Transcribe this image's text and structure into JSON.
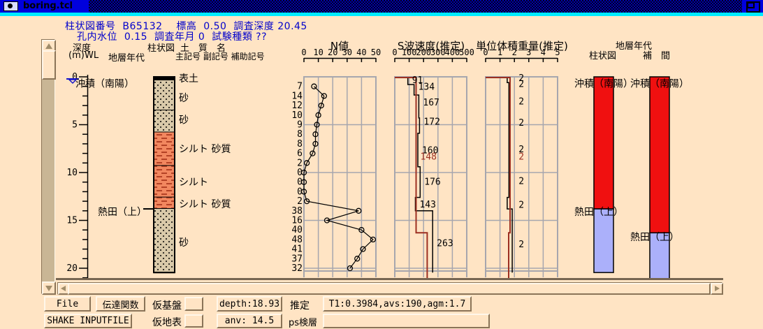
{
  "window": {
    "title": "boring.tcl",
    "menu_icon": "window-menu-circle-icon",
    "maximize_icon": "maximize-icon"
  },
  "header": {
    "line1": "柱状図番号  B65132    標高  0.50  調査深度 20.45",
    "line2": "孔内水位  0.15  調査年月 0  試験種類 ??"
  },
  "column_headers": {
    "depth": "深度",
    "depth_unit": "(m)",
    "wl": "WL",
    "era": "地層年代",
    "column": "柱状図",
    "soil_name": "土　質　名",
    "soil_codes": "主記号 副記号 補助記号",
    "right_era": "地層年代",
    "right_column": "柱状図",
    "right_interp": "補　間"
  },
  "depth_axis": {
    "unit": "m",
    "major_ticks": [
      0,
      5,
      10,
      15,
      20
    ],
    "minor_step": 1,
    "max_shown": 21
  },
  "log": {
    "water_level_depth": 0.15,
    "era_labels": [
      {
        "text": "沖積（南陽）",
        "depth": 0.7,
        "tick": false
      },
      {
        "text": "熱田（上）",
        "depth": 14.1,
        "tick": true
      }
    ],
    "layers": [
      {
        "from": 0,
        "to": 0.36,
        "pattern": "topsoil",
        "name": "表土",
        "label_depth": 0.15
      },
      {
        "from": 0.36,
        "to": 3.5,
        "pattern": "sand",
        "name": "砂",
        "label_depth": 2.2
      },
      {
        "from": 3.5,
        "to": 5.8,
        "pattern": "sand",
        "name": "砂",
        "label_depth": 4.5
      },
      {
        "from": 5.8,
        "to": 9.3,
        "pattern": "silt",
        "name": "シルト 砂質",
        "label_depth": 7.5
      },
      {
        "from": 9.3,
        "to": 12.6,
        "pattern": "silt",
        "name": "シルト",
        "label_depth": 11.0
      },
      {
        "from": 12.6,
        "to": 13.8,
        "pattern": "silt",
        "name": "シルト 砂質",
        "label_depth": 13.3
      },
      {
        "from": 13.8,
        "to": 20.45,
        "pattern": "sand",
        "name": "砂",
        "label_depth": 17.3
      }
    ]
  },
  "chart_data": [
    {
      "type": "line",
      "title": "N値",
      "x_ticks": [
        0,
        10,
        20,
        30,
        40,
        50
      ],
      "x_range": [
        0,
        50
      ],
      "depth_step": 1,
      "points": [
        {
          "depth": 1,
          "value": 7
        },
        {
          "depth": 2,
          "value": 14
        },
        {
          "depth": 3,
          "value": 12
        },
        {
          "depth": 4,
          "value": 10
        },
        {
          "depth": 5,
          "value": 9
        },
        {
          "depth": 6,
          "value": 8
        },
        {
          "depth": 7,
          "value": 8
        },
        {
          "depth": 8,
          "value": 6
        },
        {
          "depth": 9,
          "value": 2
        },
        {
          "depth": 10,
          "value": 0
        },
        {
          "depth": 11,
          "value": 0
        },
        {
          "depth": 12,
          "value": 0
        },
        {
          "depth": 13,
          "value": 2
        },
        {
          "depth": 14,
          "value": 38
        },
        {
          "depth": 15,
          "value": 16
        },
        {
          "depth": 16,
          "value": 40
        },
        {
          "depth": 17,
          "value": 48
        },
        {
          "depth": 18,
          "value": 41
        },
        {
          "depth": 19,
          "value": 37
        },
        {
          "depth": 20,
          "value": 32
        }
      ]
    },
    {
      "type": "step-line",
      "title": "S波速度(推定)",
      "x_ticks": [
        0,
        100,
        200,
        300,
        400,
        500
      ],
      "x_range": [
        0,
        500
      ],
      "series": [
        {
          "name": "suitei",
          "color": "black",
          "top_lead": false,
          "steps": [
            {
              "from": 0,
              "to": 0.8,
              "value": 91
            },
            {
              "from": 0.8,
              "to": 1.9,
              "value": 134
            },
            {
              "from": 1.9,
              "to": 4.3,
              "value": 167
            },
            {
              "from": 4.3,
              "to": 5.9,
              "value": 172
            },
            {
              "from": 5.9,
              "to": 9.4,
              "value": 160
            },
            {
              "from": 9.4,
              "to": 12.6,
              "value": 176
            },
            {
              "from": 12.6,
              "to": 14.0,
              "value": 143
            },
            {
              "from": 14.0,
              "to": 20.45,
              "value": 263
            }
          ]
        },
        {
          "name": "ps-kensou",
          "color": "darkred",
          "top_lead": true,
          "steps": [
            {
              "from": 0,
              "to": 16.3,
              "value": 148
            },
            {
              "from": 16.3,
              "to": 21.2,
              "value": 225
            }
          ]
        }
      ],
      "labels": [
        {
          "depth": 0.35,
          "text": "91",
          "series": "black"
        },
        {
          "depth": 1.05,
          "text": "134",
          "series": "black"
        },
        {
          "depth": 2.7,
          "text": "167",
          "series": "black"
        },
        {
          "depth": 4.7,
          "text": "172",
          "series": "black"
        },
        {
          "depth": 7.7,
          "text": "160",
          "series": "black"
        },
        {
          "depth": 8.35,
          "text": "148",
          "series": "darkred"
        },
        {
          "depth": 11.0,
          "text": "176",
          "series": "black"
        },
        {
          "depth": 13.35,
          "text": "143",
          "series": "black"
        },
        {
          "depth": 17.4,
          "text": "263",
          "series": "black"
        }
      ]
    },
    {
      "type": "step-line",
      "title": "単位体積重量(推定)",
      "x_ticks": [
        0,
        1,
        2,
        3,
        4,
        5
      ],
      "x_range": [
        0,
        5
      ],
      "series": [
        {
          "name": "suitei",
          "color": "black",
          "top_lead": false,
          "steps": [
            {
              "from": 0,
              "to": 0.6,
              "value": 1.5
            },
            {
              "from": 0.6,
              "to": 12.6,
              "value": 1.62
            },
            {
              "from": 12.6,
              "to": 13.8,
              "value": 1.5
            },
            {
              "from": 13.8,
              "to": 20.45,
              "value": 1.85
            }
          ]
        },
        {
          "name": "ps-kensou",
          "color": "darkred",
          "top_lead": true,
          "steps": [
            {
              "from": 0,
              "to": 16.3,
              "value": 1.7
            },
            {
              "from": 16.3,
              "to": 21.2,
              "value": 1.6
            }
          ]
        }
      ],
      "labels": [
        {
          "depth": 0.15,
          "text": "2",
          "series": "black"
        },
        {
          "depth": 0.75,
          "text": "2",
          "series": "black"
        },
        {
          "depth": 2.6,
          "text": "2",
          "series": "black"
        },
        {
          "depth": 4.8,
          "text": "2",
          "series": "black"
        },
        {
          "depth": 7.6,
          "text": "2",
          "series": "black"
        },
        {
          "depth": 8.35,
          "text": "2",
          "series": "darkred"
        },
        {
          "depth": 10.9,
          "text": "2",
          "series": "black"
        },
        {
          "depth": 13.4,
          "text": "2",
          "series": "black"
        },
        {
          "depth": 17.5,
          "text": "2",
          "series": "black"
        }
      ]
    }
  ],
  "right_columns": [
    {
      "name": "柱状図",
      "labels": [
        {
          "text": "沖積（南陽）",
          "depth": 0.7
        },
        {
          "text": "熱田（上）",
          "depth": 14.1
        }
      ],
      "segments": [
        {
          "from": 0,
          "to": 13.8,
          "color": "era_red"
        },
        {
          "from": 13.8,
          "to": 20.45,
          "color": "era_blue"
        }
      ]
    },
    {
      "name": "補間",
      "labels": [
        {
          "text": "沖積（南陽）",
          "depth": 0.7
        },
        {
          "text": "熱田（上）",
          "depth": 16.7
        }
      ],
      "segments": [
        {
          "from": 0,
          "to": 16.3,
          "color": "era_red"
        },
        {
          "from": 16.3,
          "to": 21.2,
          "color": "era_blue"
        }
      ]
    }
  ],
  "toolbar": {
    "file": "File",
    "transfer": "伝達関数",
    "shake": "SHAKE INPUTFILE",
    "base_label": "仮基盤",
    "surface_label": "仮地表",
    "base_input": "",
    "surface_input": "",
    "depth_value": "depth:18.93",
    "anv_value": "anv: 14.5",
    "estimate_label": "推定",
    "estimate_value": "T1:0.3984,avs:190,agm:1.7",
    "ps_label": "ps検層",
    "ps_value": ""
  },
  "colors": {
    "background": "#ffe4c4",
    "header_text": "#0000cc",
    "titlebar_blue": "#0000dd",
    "cyan_strip": "#00eaff",
    "grid": "#a6a6ae",
    "silt_fill": "#f2875f",
    "silt_dash": "#b44226",
    "sand_fill": "#d9c9a9",
    "topsoil_fill": "#000000",
    "era_red": "#f01010",
    "era_blue": "#abb0fa",
    "ps_line": "#9c3022",
    "water_level": "#1515cc"
  }
}
